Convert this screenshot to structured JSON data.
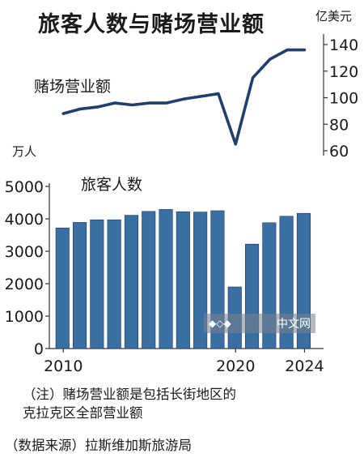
{
  "title": "旅客人数与赌场营业额",
  "watermark": {
    "text": "中文网",
    "icon": "logo-icon"
  },
  "notes": {
    "line1": "（注）赌场营业额是包括长街地区的",
    "line2": "克拉克区全部营业额"
  },
  "source": "（数据来源）拉斯维加斯旅游局",
  "chart_data": [
    {
      "type": "line",
      "title": "赌场营业额",
      "unit_label": "亿美元",
      "ylim": [
        60,
        145
      ],
      "yticks": [
        "60",
        "80",
        "100",
        "120",
        "140"
      ],
      "ytick_values": [
        60,
        80,
        100,
        120,
        140
      ],
      "axis_side": "right",
      "color": "#1f3f6e",
      "x": [
        2010,
        2011,
        2012,
        2013,
        2014,
        2015,
        2016,
        2017,
        2018,
        2019,
        2020,
        2021,
        2022,
        2023,
        2024
      ],
      "values": [
        88,
        91.5,
        93,
        96,
        94.5,
        96,
        96,
        99,
        101,
        103,
        65,
        115,
        129,
        136,
        136
      ]
    },
    {
      "type": "bar",
      "title": "旅客人数",
      "unit_label": "万人",
      "ylim": [
        0,
        5000
      ],
      "yticks": [
        "0",
        "1000",
        "2000",
        "3000",
        "4000",
        "5000"
      ],
      "ytick_values": [
        0,
        1000,
        2000,
        3000,
        4000,
        5000
      ],
      "xticks": [
        "2010",
        "2020",
        "2024"
      ],
      "xtick_values": [
        2010,
        2020,
        2024
      ],
      "bar_color": "#3a6fa3",
      "x": [
        2010,
        2011,
        2012,
        2013,
        2014,
        2015,
        2016,
        2017,
        2018,
        2019,
        2020,
        2021,
        2022,
        2023,
        2024
      ],
      "values": [
        3720,
        3890,
        3970,
        3970,
        4110,
        4230,
        4290,
        4220,
        4210,
        4250,
        1900,
        3220,
        3880,
        4080,
        4170
      ]
    }
  ]
}
